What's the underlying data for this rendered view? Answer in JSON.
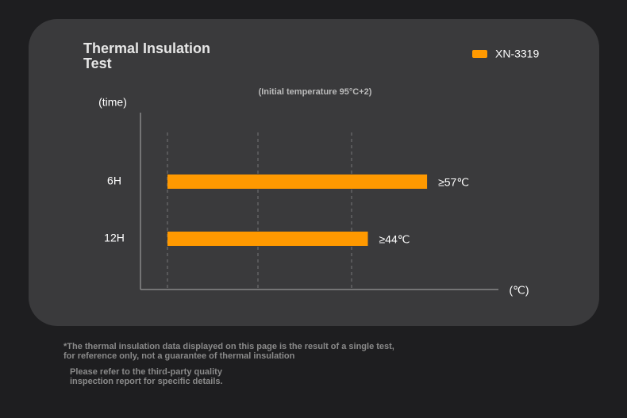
{
  "chart_data": {
    "type": "bar",
    "orientation": "horizontal",
    "title": "Thermal Insulation Test",
    "subtitle": "(Initial temperature 95°C+2)",
    "y_label": "(time)",
    "x_label": "(℃)",
    "categories": [
      "6H",
      "12H"
    ],
    "series": [
      {
        "name": "XN-3319",
        "color": "#ff9900",
        "values": [
          57,
          44
        ],
        "value_labels": [
          "≥57℃",
          "≥44℃"
        ]
      }
    ],
    "xlim": [
      0,
      65
    ],
    "footnotes": [
      "*The thermal insulation data displayed on this page is the result of a single test, for reference only, not a guarantee of thermal insulation",
      "Please refer to the third-party quality inspection report for specific details."
    ]
  }
}
